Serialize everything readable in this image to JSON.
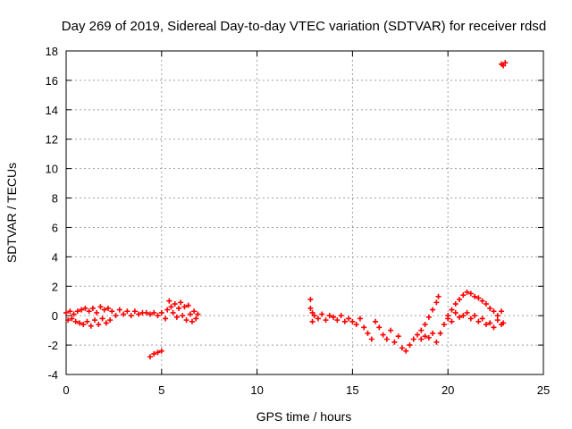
{
  "chart_data": {
    "type": "scatter",
    "title": "Day 269 of 2019, Sidereal Day-to-day VTEC variation (SDTVAR) for receiver rdsd",
    "xlabel": "GPS time / hours",
    "ylabel": "SDTVAR / TECUs",
    "xlim": [
      0,
      25
    ],
    "ylim": [
      -4,
      18
    ],
    "xticks": [
      "0",
      "5",
      "10",
      "15",
      "20",
      "25"
    ],
    "yticks": [
      "-4",
      "-2",
      "0",
      "2",
      "4",
      "6",
      "8",
      "10",
      "12",
      "14",
      "16",
      "18"
    ],
    "grid": true,
    "marker": "+",
    "color": "#ff0000",
    "series": [
      {
        "name": "SDTVAR",
        "points": [
          [
            0.0,
            0.2
          ],
          [
            0.1,
            -0.3
          ],
          [
            0.2,
            0.3
          ],
          [
            0.3,
            -0.2
          ],
          [
            0.4,
            0.1
          ],
          [
            0.5,
            -0.4
          ],
          [
            0.6,
            0.3
          ],
          [
            0.7,
            -0.5
          ],
          [
            0.8,
            0.4
          ],
          [
            0.9,
            -0.6
          ],
          [
            1.0,
            0.5
          ],
          [
            1.1,
            -0.4
          ],
          [
            1.2,
            0.3
          ],
          [
            1.3,
            -0.7
          ],
          [
            1.4,
            0.5
          ],
          [
            1.5,
            -0.3
          ],
          [
            1.6,
            0.2
          ],
          [
            1.7,
            -0.6
          ],
          [
            1.8,
            0.6
          ],
          [
            1.9,
            -0.2
          ],
          [
            2.0,
            0.4
          ],
          [
            2.1,
            -0.5
          ],
          [
            2.2,
            0.5
          ],
          [
            2.3,
            -0.3
          ],
          [
            2.4,
            0.3
          ],
          [
            2.6,
            0.0
          ],
          [
            2.8,
            0.4
          ],
          [
            3.0,
            0.1
          ],
          [
            3.2,
            0.3
          ],
          [
            3.4,
            0.0
          ],
          [
            3.6,
            0.3
          ],
          [
            3.8,
            0.1
          ],
          [
            4.0,
            0.2
          ],
          [
            4.2,
            0.2
          ],
          [
            4.4,
            0.1
          ],
          [
            4.6,
            0.2
          ],
          [
            4.8,
            0.0
          ],
          [
            5.0,
            0.2
          ],
          [
            5.2,
            -0.2
          ],
          [
            5.3,
            0.4
          ],
          [
            5.4,
            1.0
          ],
          [
            5.5,
            0.6
          ],
          [
            5.6,
            0.2
          ],
          [
            5.7,
            0.8
          ],
          [
            5.8,
            -0.1
          ],
          [
            5.9,
            0.5
          ],
          [
            6.0,
            0.9
          ],
          [
            6.1,
            0.0
          ],
          [
            6.2,
            0.6
          ],
          [
            6.3,
            -0.3
          ],
          [
            6.4,
            0.7
          ],
          [
            6.5,
            0.1
          ],
          [
            6.6,
            -0.4
          ],
          [
            6.7,
            0.3
          ],
          [
            6.8,
            -0.2
          ],
          [
            6.9,
            0.1
          ],
          [
            4.4,
            -2.8
          ],
          [
            4.6,
            -2.6
          ],
          [
            4.8,
            -2.5
          ],
          [
            5.0,
            -2.4
          ],
          [
            12.8,
            1.1
          ],
          [
            12.8,
            0.5
          ],
          [
            12.9,
            -0.4
          ],
          [
            12.9,
            0.2
          ],
          [
            13.0,
            0.0
          ],
          [
            13.2,
            -0.2
          ],
          [
            13.4,
            0.1
          ],
          [
            13.6,
            -0.3
          ],
          [
            13.8,
            0.0
          ],
          [
            14.0,
            -0.1
          ],
          [
            14.2,
            -0.3
          ],
          [
            14.4,
            0.0
          ],
          [
            14.6,
            -0.4
          ],
          [
            14.8,
            -0.2
          ],
          [
            15.0,
            -0.4
          ],
          [
            15.2,
            -0.6
          ],
          [
            15.4,
            -0.2
          ],
          [
            15.6,
            -0.8
          ],
          [
            15.8,
            -1.2
          ],
          [
            16.0,
            -1.6
          ],
          [
            16.2,
            -0.4
          ],
          [
            16.4,
            -0.8
          ],
          [
            16.6,
            -1.3
          ],
          [
            16.8,
            -1.6
          ],
          [
            17.0,
            -1.0
          ],
          [
            17.2,
            -1.8
          ],
          [
            17.4,
            -1.4
          ],
          [
            17.6,
            -2.2
          ],
          [
            17.8,
            -2.4
          ],
          [
            18.0,
            -2.0
          ],
          [
            18.2,
            -1.6
          ],
          [
            18.4,
            -1.3
          ],
          [
            18.6,
            -1.0
          ],
          [
            18.8,
            -0.6
          ],
          [
            19.0,
            -0.1
          ],
          [
            19.2,
            0.4
          ],
          [
            19.4,
            0.9
          ],
          [
            19.5,
            1.3
          ],
          [
            18.6,
            -1.6
          ],
          [
            18.8,
            -1.4
          ],
          [
            19.0,
            -1.5
          ],
          [
            19.2,
            -1.2
          ],
          [
            19.4,
            -1.8
          ],
          [
            19.6,
            -1.2
          ],
          [
            19.8,
            -0.6
          ],
          [
            20.0,
            0.0
          ],
          [
            20.2,
            0.4
          ],
          [
            20.4,
            0.8
          ],
          [
            20.6,
            1.1
          ],
          [
            20.8,
            1.4
          ],
          [
            21.0,
            1.6
          ],
          [
            21.2,
            1.5
          ],
          [
            21.4,
            1.3
          ],
          [
            21.6,
            1.2
          ],
          [
            21.8,
            1.0
          ],
          [
            22.0,
            0.8
          ],
          [
            22.2,
            0.5
          ],
          [
            22.4,
            0.3
          ],
          [
            22.6,
            0.0
          ],
          [
            22.8,
            0.3
          ],
          [
            20.0,
            -0.2
          ],
          [
            20.4,
            0.2
          ],
          [
            20.8,
            0.0
          ],
          [
            21.2,
            -0.2
          ],
          [
            21.6,
            -0.4
          ],
          [
            22.0,
            -0.6
          ],
          [
            22.4,
            -0.8
          ],
          [
            22.8,
            -0.6
          ],
          [
            20.2,
            -0.4
          ],
          [
            20.6,
            -0.1
          ],
          [
            21.0,
            0.2
          ],
          [
            21.4,
            0.0
          ],
          [
            21.8,
            -0.2
          ],
          [
            22.2,
            -0.5
          ],
          [
            22.6,
            -0.3
          ],
          [
            22.9,
            -0.5
          ],
          [
            22.8,
            17.1
          ],
          [
            22.9,
            17.0
          ],
          [
            23.0,
            17.2
          ]
        ]
      }
    ]
  }
}
